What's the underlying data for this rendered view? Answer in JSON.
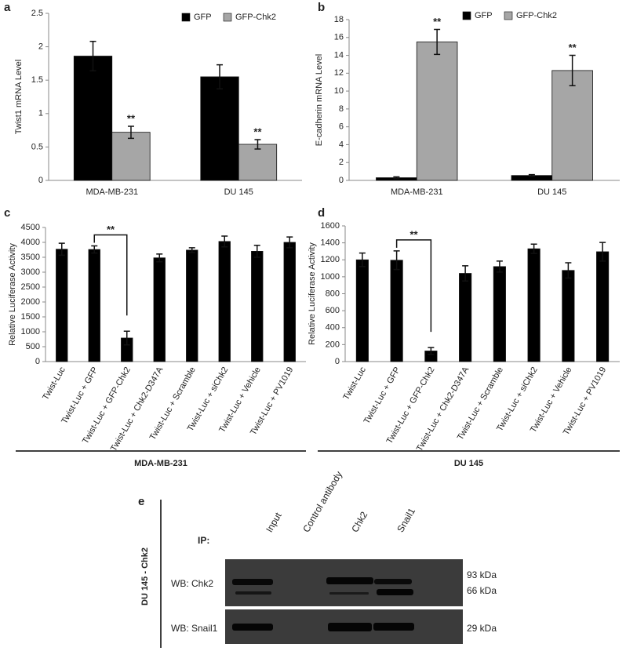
{
  "chart_data": [
    {
      "type": "bar",
      "label": "a",
      "ylabel": "Twist1 mRNA Level",
      "categories": [
        "MDA-MB-231",
        "DU 145"
      ],
      "series": [
        {
          "name": "GFP",
          "color": "#000000",
          "values": [
            1.86,
            1.55
          ],
          "errors": [
            0.22,
            0.18
          ]
        },
        {
          "name": "GFP-Chk2",
          "color": "#a6a6a6",
          "values": [
            0.72,
            0.54
          ],
          "errors": [
            0.09,
            0.07
          ]
        }
      ],
      "annotations": [
        "**",
        "**"
      ],
      "ylim": [
        0,
        2.5
      ],
      "yticks": [
        0,
        0.5,
        1,
        1.5,
        2,
        2.5
      ]
    },
    {
      "type": "bar",
      "label": "b",
      "ylabel": "E-cadherin mRNA Level",
      "categories": [
        "MDA-MB-231",
        "DU 145"
      ],
      "series": [
        {
          "name": "GFP",
          "color": "#000000",
          "values": [
            0.3,
            0.55
          ],
          "errors": [
            0.1,
            0.1
          ]
        },
        {
          "name": "GFP-Chk2",
          "color": "#a6a6a6",
          "values": [
            15.5,
            12.3
          ],
          "errors": [
            1.4,
            1.7
          ]
        }
      ],
      "annotations": [
        "**",
        "**"
      ],
      "ylim": [
        0,
        18
      ],
      "yticks": [
        0,
        2,
        4,
        6,
        8,
        10,
        12,
        14,
        16,
        18
      ]
    },
    {
      "type": "bar",
      "label": "c",
      "ylabel": "Relative Luciferase Activity",
      "group": "MDA-MB-231",
      "categories": [
        "Twist-Luc",
        "Twist-Luc + GFP",
        "Twist-Luc + GFP-Chk2",
        "Twist-Luc + Chk2-D347A",
        "Twist-Luc + Scramble",
        "Twist-Luc + siChk2",
        "Twist-Luc + Vehicle",
        "Twist-Luc + PV1019"
      ],
      "series": [
        {
          "color": "#000000",
          "values": [
            3770,
            3760,
            790,
            3480,
            3740,
            4030,
            3700,
            4000
          ],
          "errors": [
            200,
            120,
            230,
            130,
            80,
            180,
            200,
            180
          ]
        }
      ],
      "annotations": [
        "**"
      ],
      "ylim": [
        0,
        4500
      ],
      "yticks": [
        0,
        500,
        1000,
        1500,
        2000,
        2500,
        3000,
        3500,
        4000,
        4500
      ]
    },
    {
      "type": "bar",
      "label": "d",
      "ylabel": "Relative Luciferase Activity",
      "group": "DU 145",
      "categories": [
        "Twist-Luc",
        "Twist-Luc + GFP",
        "Twist-Luc + GFP-Chk2",
        "Twist-Luc + Chk2-D347A",
        "Twist-Luc + Scramble",
        "Twist-Luc + siChk2",
        "Twist-Luc + Vehicle",
        "Twist-Luc + PV1019"
      ],
      "series": [
        {
          "color": "#000000",
          "values": [
            1200,
            1195,
            125,
            1040,
            1120,
            1330,
            1075,
            1295
          ],
          "errors": [
            80,
            110,
            40,
            90,
            65,
            55,
            90,
            110
          ]
        }
      ],
      "annotations": [
        "**"
      ],
      "ylim": [
        0,
        1600
      ],
      "yticks": [
        0,
        200,
        400,
        600,
        800,
        1000,
        1200,
        1400,
        1600
      ]
    }
  ],
  "blot": {
    "label": "e",
    "side_label": "DU 145 - Chk2",
    "ip": "IP:",
    "lanes": [
      "Input",
      "Control antibody",
      "Chk2",
      "Snail1"
    ],
    "rows": [
      {
        "name": "WB: Chk2",
        "sizes": [
          "93 kDa",
          "66 kDa"
        ]
      },
      {
        "name": "WB: Snail1",
        "sizes": [
          "29 kDa"
        ]
      }
    ]
  }
}
